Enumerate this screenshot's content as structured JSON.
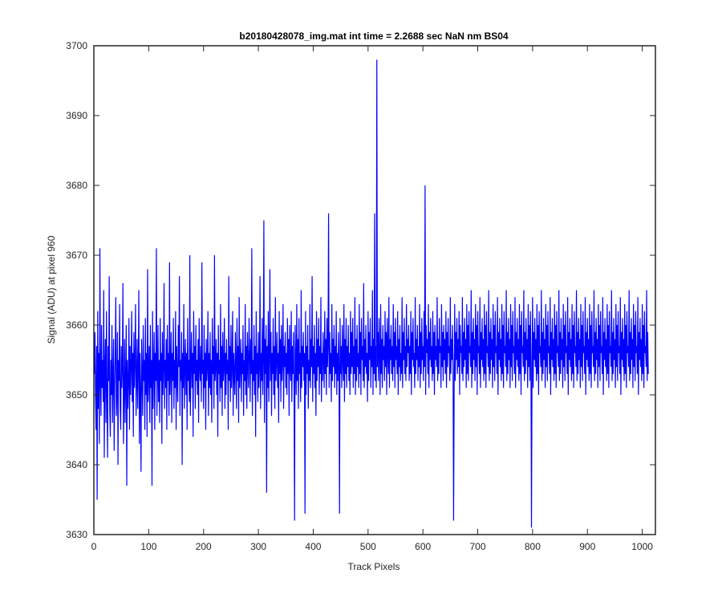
{
  "chart_data": {
    "type": "line",
    "title": "b20180428078_img.mat int time = 2.2688 sec  NaN nm BS04",
    "xlabel": "Track Pixels",
    "ylabel": "Signal (ADU) at pixel 960",
    "xlim": [
      0,
      1024
    ],
    "ylim": [
      3630,
      3700
    ],
    "xticks": [
      0,
      100,
      200,
      300,
      400,
      500,
      600,
      700,
      800,
      900,
      1000
    ],
    "yticks": [
      3630,
      3640,
      3650,
      3660,
      3670,
      3680,
      3690,
      3700
    ],
    "grid": false,
    "series": [
      {
        "color": "#0000ff",
        "x_start": 1,
        "x_step": 1,
        "values": [
          3653,
          3659,
          3650,
          3645,
          3657,
          3635,
          3662,
          3648,
          3656,
          3643,
          3671,
          3652,
          3647,
          3660,
          3651,
          3655,
          3649,
          3665,
          3641,
          3654,
          3658,
          3646,
          3662,
          3650,
          3641,
          3657,
          3652,
          3667,
          3648,
          3644,
          3655,
          3650,
          3660,
          3646,
          3653,
          3658,
          3642,
          3651,
          3656,
          3664,
          3647,
          3650,
          3659,
          3640,
          3655,
          3652,
          3663,
          3648,
          3645,
          3657,
          3651,
          3654,
          3666,
          3643,
          3650,
          3658,
          3646,
          3653,
          3660,
          3637,
          3655,
          3648,
          3652,
          3661,
          3645,
          3657,
          3650,
          3654,
          3662,
          3649,
          3656,
          3644,
          3659,
          3651,
          3655,
          3663,
          3647,
          3652,
          3658,
          3648,
          3654,
          3665,
          3643,
          3656,
          3650,
          3639,
          3658,
          3653,
          3647,
          3660,
          3652,
          3655,
          3645,
          3661,
          3650,
          3656,
          3644,
          3668,
          3649,
          3653,
          3657,
          3646,
          3660,
          3651,
          3655,
          3637,
          3662,
          3648,
          3654,
          3659,
          3645,
          3656,
          3652,
          3671,
          3647,
          3653,
          3660,
          3649,
          3655,
          3646,
          3661,
          3652,
          3656,
          3643,
          3659,
          3650,
          3654,
          3666,
          3648,
          3655,
          3651,
          3658,
          3645,
          3660,
          3652,
          3656,
          3647,
          3669,
          3650,
          3654,
          3659,
          3646,
          3656,
          3652,
          3661,
          3648,
          3655,
          3651,
          3662,
          3645,
          3657,
          3653,
          3649,
          3660,
          3654,
          3667,
          3647,
          3655,
          3652,
          3659,
          3640,
          3656,
          3651,
          3663,
          3648,
          3654,
          3658,
          3650,
          3656,
          3645,
          3661,
          3652,
          3655,
          3649,
          3670,
          3647,
          3654,
          3659,
          3651,
          3656,
          3644,
          3662,
          3653,
          3657,
          3648,
          3660,
          3652,
          3655,
          3650,
          3658,
          3646,
          3661,
          3654,
          3652,
          3657,
          3649,
          3669,
          3653,
          3655,
          3648,
          3660,
          3651,
          3656,
          3645,
          3658,
          3652,
          3654,
          3662,
          3647,
          3656,
          3651,
          3659,
          3650,
          3655,
          3646,
          3661,
          3653,
          3657,
          3648,
          3670,
          3652,
          3654,
          3658,
          3650,
          3656,
          3644,
          3660,
          3653,
          3655,
          3649,
          3663,
          3651,
          3657,
          3647,
          3659,
          3652,
          3654,
          3661,
          3648,
          3656,
          3650,
          3658,
          3653,
          3655,
          3645,
          3667,
          3652,
          3657,
          3649,
          3660,
          3651,
          3654,
          3662,
          3647,
          3656,
          3653,
          3650,
          3659,
          3655,
          3648,
          3661,
          3652,
          3657,
          3646,
          3664,
          3651,
          3654,
          3658,
          3649,
          3656,
          3653,
          3660,
          3647,
          3655,
          3652,
          3663,
          3650,
          3657,
          3648,
          3659,
          3654,
          3651,
          3661,
          3656,
          3649,
          3658,
          3653,
          3671,
          3647,
          3655,
          3652,
          3660,
          3650,
          3657,
          3644,
          3662,
          3653,
          3656,
          3649,
          3659,
          3651,
          3654,
          3667,
          3648,
          3656,
          3652,
          3661,
          3650,
          3655,
          3675,
          3646,
          3658,
          3653,
          3660,
          3636,
          3657,
          3651,
          3662,
          3649,
          3655,
          3668,
          3652,
          3659,
          3647,
          3656,
          3653,
          3661,
          3650,
          3657,
          3648,
          3664,
          3652,
          3655,
          3659,
          3651,
          3656,
          3646,
          3662,
          3653,
          3658,
          3649,
          3660,
          3652,
          3655,
          3663,
          3648,
          3657,
          3654,
          3659,
          3651,
          3656,
          3650,
          3661,
          3653,
          3658,
          3647,
          3660,
          3654,
          3652,
          3662,
          3649,
          3657,
          3653,
          3659,
          3651,
          3632,
          3660,
          3655,
          3650,
          3663,
          3652,
          3658,
          3648,
          3661,
          3653,
          3656,
          3649,
          3665,
          3651,
          3657,
          3654,
          3659,
          3652,
          3656,
          3633,
          3662,
          3650,
          3657,
          3653,
          3660,
          3648,
          3655,
          3652,
          3663,
          3651,
          3658,
          3654,
          3667,
          3649,
          3657,
          3653,
          3660,
          3651,
          3656,
          3647,
          3662,
          3652,
          3658,
          3654,
          3661,
          3650,
          3657,
          3653,
          3664,
          3649,
          3656,
          3652,
          3659,
          3655,
          3651,
          3662,
          3653,
          3658,
          3650,
          3661,
          3654,
          3657,
          3676,
          3651,
          3659,
          3653,
          3656,
          3649,
          3663,
          3652,
          3658,
          3654,
          3660,
          3651,
          3657,
          3653,
          3662,
          3650,
          3656,
          3652,
          3659,
          3654,
          3633,
          3661,
          3653,
          3657,
          3651,
          3660,
          3655,
          3652,
          3663,
          3649,
          3658,
          3653,
          3661,
          3651,
          3657,
          3654,
          3660,
          3652,
          3656,
          3650,
          3662,
          3653,
          3659,
          3654,
          3661,
          3651,
          3657,
          3653,
          3664,
          3650,
          3658,
          3652,
          3660,
          3654,
          3656,
          3651,
          3663,
          3653,
          3659,
          3650,
          3661,
          3655,
          3657,
          3652,
          3666,
          3651,
          3658,
          3654,
          3660,
          3653,
          3656,
          3649,
          3662,
          3652,
          3659,
          3655,
          3661,
          3651,
          3657,
          3654,
          3665,
          3650,
          3658,
          3653,
          3676,
          3652,
          3657,
          3651,
          3698,
          3654,
          3659,
          3652,
          3661,
          3656,
          3650,
          3663,
          3653,
          3658,
          3651,
          3660,
          3655,
          3657,
          3652,
          3662,
          3654,
          3659,
          3650,
          3661,
          3656,
          3653,
          3664,
          3651,
          3658,
          3655,
          3660,
          3653,
          3657,
          3652,
          3663,
          3654,
          3659,
          3651,
          3661,
          3655,
          3657,
          3653,
          3662,
          3650,
          3658,
          3654,
          3660,
          3652,
          3656,
          3653,
          3664,
          3651,
          3659,
          3655,
          3661,
          3653,
          3657,
          3652,
          3663,
          3654,
          3658,
          3656,
          3660,
          3652,
          3657,
          3653,
          3662,
          3650,
          3659,
          3655,
          3661,
          3654,
          3656,
          3651,
          3664,
          3653,
          3658,
          3655,
          3660,
          3652,
          3657,
          3654,
          3663,
          3651,
          3659,
          3653,
          3661,
          3655,
          3657,
          3652,
          3662,
          3654,
          3680,
          3650,
          3660,
          3656,
          3658,
          3653,
          3663,
          3651,
          3659,
          3655,
          3661,
          3654,
          3657,
          3652,
          3662,
          3653,
          3659,
          3650,
          3660,
          3655,
          3657,
          3654,
          3664,
          3652,
          3658,
          3653,
          3661,
          3656,
          3657,
          3651,
          3663,
          3654,
          3659,
          3652,
          3660,
          3655,
          3658,
          3653,
          3662,
          3651,
          3659,
          3654,
          3661,
          3656,
          3657,
          3652,
          3664,
          3653,
          3658,
          3655,
          3660,
          3654,
          3632,
          3651,
          3663,
          3652,
          3659,
          3655,
          3661,
          3653,
          3658,
          3654,
          3662,
          3650,
          3660,
          3656,
          3657,
          3653,
          3664,
          3652,
          3659,
          3654,
          3661,
          3655,
          3658,
          3651,
          3663,
          3653,
          3660,
          3652,
          3662,
          3656,
          3657,
          3654,
          3665,
          3651,
          3659,
          3653,
          3661,
          3655,
          3658,
          3652,
          3663,
          3654,
          3660,
          3650,
          3662,
          3656,
          3657,
          3653,
          3664,
          3651,
          3659,
          3655,
          3661,
          3654,
          3658,
          3652,
          3663,
          3653,
          3660,
          3651,
          3662,
          3656,
          3657,
          3654,
          3665,
          3652,
          3659,
          3653,
          3661,
          3655,
          3658,
          3651,
          3663,
          3654,
          3660,
          3652,
          3662,
          3656,
          3657,
          3653,
          3664,
          3650,
          3659,
          3655,
          3661,
          3654,
          3658,
          3652,
          3663,
          3653,
          3660,
          3651,
          3662,
          3656,
          3657,
          3654,
          3665,
          3652,
          3659,
          3653,
          3661,
          3655,
          3658,
          3651,
          3663,
          3654,
          3660,
          3652,
          3662,
          3656,
          3657,
          3653,
          3664,
          3651,
          3659,
          3655,
          3661,
          3654,
          3658,
          3652,
          3663,
          3653,
          3660,
          3650,
          3662,
          3656,
          3657,
          3654,
          3665,
          3652,
          3659,
          3653,
          3661,
          3655,
          3658,
          3651,
          3663,
          3654,
          3660,
          3652,
          3662,
          3656,
          3631,
          3653,
          3664,
          3651,
          3659,
          3655,
          3661,
          3654,
          3658,
          3652,
          3663,
          3653,
          3660,
          3650,
          3662,
          3656,
          3657,
          3654,
          3665,
          3652,
          3659,
          3653,
          3661,
          3655,
          3658,
          3651,
          3663,
          3654,
          3660,
          3652,
          3662,
          3656,
          3657,
          3653,
          3664,
          3650,
          3659,
          3655,
          3661,
          3654,
          3658,
          3652,
          3663,
          3653,
          3660,
          3651,
          3662,
          3656,
          3657,
          3654,
          3665,
          3652,
          3659,
          3653,
          3661,
          3655,
          3658,
          3651,
          3663,
          3654,
          3660,
          3652,
          3662,
          3656,
          3657,
          3653,
          3664,
          3650,
          3659,
          3655,
          3661,
          3654,
          3658,
          3652,
          3663,
          3653,
          3660,
          3651,
          3662,
          3656,
          3657,
          3654,
          3665,
          3652,
          3659,
          3653,
          3661,
          3655,
          3658,
          3651,
          3663,
          3654,
          3660,
          3652,
          3662,
          3656,
          3657,
          3653,
          3664,
          3650,
          3659,
          3655,
          3661,
          3654,
          3658,
          3652,
          3663,
          3653,
          3660,
          3651,
          3662,
          3656,
          3657,
          3654,
          3665,
          3652,
          3659,
          3653,
          3661,
          3655,
          3658,
          3651,
          3663,
          3654,
          3660,
          3652,
          3662,
          3656,
          3657,
          3653,
          3664,
          3650,
          3659,
          3655,
          3661,
          3654,
          3658,
          3652,
          3663,
          3653,
          3660,
          3651,
          3662,
          3656,
          3657,
          3654,
          3665,
          3652,
          3659,
          3653,
          3661,
          3655,
          3658,
          3651,
          3663,
          3654,
          3660,
          3652,
          3662,
          3656,
          3657,
          3653,
          3664,
          3650,
          3659,
          3655,
          3661,
          3654,
          3658,
          3652,
          3663,
          3653,
          3660,
          3651,
          3662,
          3656,
          3657,
          3654,
          3665,
          3652,
          3659,
          3653,
          3661,
          3655,
          3658,
          3651,
          3663,
          3654,
          3660,
          3652,
          3662,
          3656,
          3657,
          3653,
          3664,
          3650,
          3659,
          3655,
          3661,
          3654,
          3658,
          3652,
          3663,
          3653,
          3660,
          3651,
          3662,
          3656,
          3657,
          3654,
          3665,
          3652,
          3659,
          3653
        ]
      }
    ]
  }
}
